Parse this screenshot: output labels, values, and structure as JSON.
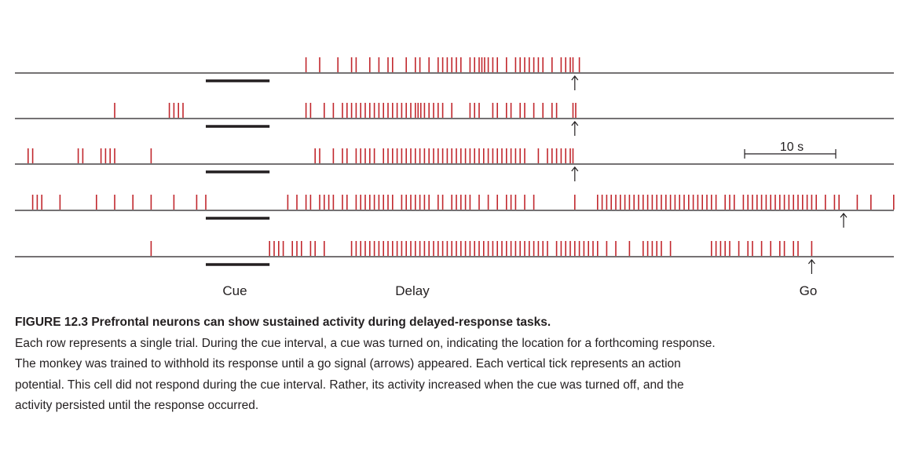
{
  "figure": {
    "label": "FIGURE 12.3",
    "title": "Prefrontal neurons can show sustained activity during delayed-response tasks.",
    "body": "Each row represents a single trial. During the cue interval, a cue was turned on, indicating the location for a forthcoming response. The monkey was trained to withhold its response until a go signal (arrows) appeared. Each vertical tick represents an action potential. This cell did not respond during the cue interval. Rather, its activity increased when the cue was turned off, and the activity persisted until the response occurred."
  },
  "labels": {
    "cue": "Cue",
    "delay": "Delay",
    "go": "Go",
    "scale": "10 s"
  },
  "colors": {
    "spike": "#c1272d",
    "axis": "#231f20"
  },
  "chart_data": {
    "type": "raster",
    "units": "s",
    "scale_bar_s": 10,
    "cue_interval_s": [
      0,
      7
    ],
    "trials": [
      {
        "go_s": 40.5,
        "spikes_s": [
          11.0,
          12.5,
          14.5,
          16.0,
          16.5,
          18.0,
          19.0,
          20.0,
          20.5,
          22.0,
          23.0,
          23.5,
          24.5,
          25.5,
          26.0,
          26.5,
          27.0,
          27.5,
          28.0,
          29.0,
          29.5,
          30.0,
          30.3,
          30.6,
          31.0,
          31.5,
          32.0,
          33.0,
          34.0,
          34.5,
          35.0,
          35.5,
          36.0,
          36.5,
          37.0,
          38.0,
          39.0,
          39.5,
          40.0,
          40.3,
          41.0
        ]
      },
      {
        "go_s": 40.5,
        "spikes_s": [
          -10.0,
          -4.0,
          -3.5,
          -3.0,
          -2.5,
          11.0,
          11.5,
          13.0,
          14.0,
          15.0,
          15.5,
          16.0,
          16.5,
          17.0,
          17.5,
          18.0,
          18.5,
          19.0,
          19.5,
          20.0,
          20.5,
          21.0,
          21.5,
          22.0,
          22.5,
          23.0,
          23.3,
          23.6,
          24.0,
          24.5,
          25.0,
          25.5,
          26.0,
          27.0,
          29.0,
          29.5,
          30.0,
          31.5,
          32.0,
          33.0,
          33.5,
          34.5,
          35.0,
          36.0,
          37.0,
          38.0,
          38.5,
          40.3,
          40.6
        ]
      },
      {
        "go_s": 40.5,
        "spikes_s": [
          -19.5,
          -19.0,
          -14.0,
          -13.5,
          -11.5,
          -11.0,
          -10.5,
          -10.0,
          -6.0,
          12.0,
          12.5,
          14.0,
          15.0,
          15.5,
          16.5,
          17.0,
          17.5,
          18.0,
          18.5,
          19.5,
          20.0,
          20.5,
          21.0,
          21.5,
          22.0,
          22.5,
          23.0,
          23.5,
          24.0,
          24.5,
          25.0,
          25.5,
          26.0,
          26.5,
          27.0,
          27.5,
          28.0,
          28.5,
          29.0,
          29.5,
          30.0,
          30.5,
          31.0,
          31.5,
          32.0,
          32.5,
          33.0,
          33.5,
          34.0,
          34.5,
          35.0,
          36.5,
          37.5,
          38.0,
          38.5,
          39.0,
          39.5,
          40.0,
          40.3
        ]
      },
      {
        "go_s": 70.0,
        "spikes_s": [
          -19.0,
          -18.5,
          -18.0,
          -16.0,
          -12.0,
          -10.0,
          -8.0,
          -6.0,
          -3.5,
          -1.0,
          0.0,
          9.0,
          10.0,
          11.0,
          11.5,
          12.5,
          13.0,
          13.5,
          14.0,
          15.0,
          15.5,
          16.5,
          17.0,
          17.5,
          18.0,
          18.5,
          19.0,
          19.5,
          20.0,
          20.5,
          21.5,
          22.0,
          22.5,
          23.0,
          23.5,
          24.0,
          24.5,
          25.5,
          26.0,
          27.0,
          27.5,
          28.0,
          28.5,
          29.0,
          30.0,
          31.0,
          32.0,
          33.0,
          33.5,
          34.0,
          35.0,
          36.0,
          40.5,
          43.0,
          43.5,
          44.0,
          44.5,
          45.0,
          45.5,
          46.0,
          46.5,
          47.0,
          47.5,
          48.0,
          48.5,
          49.0,
          49.5,
          50.0,
          50.5,
          51.0,
          51.5,
          52.0,
          52.5,
          53.0,
          53.5,
          54.0,
          54.5,
          55.0,
          55.5,
          56.0,
          57.0,
          57.5,
          58.0,
          59.0,
          59.5,
          60.0,
          60.5,
          61.0,
          61.5,
          62.0,
          62.5,
          63.0,
          63.5,
          64.0,
          64.5,
          65.0,
          65.5,
          66.0,
          66.5,
          67.0,
          68.0,
          69.0,
          69.5,
          71.5,
          73.0,
          75.5
        ]
      },
      {
        "go_s": 66.5,
        "spikes_s": [
          -6.0,
          7.0,
          7.5,
          8.0,
          8.5,
          9.5,
          10.0,
          10.5,
          11.5,
          12.0,
          13.0,
          16.0,
          16.5,
          17.0,
          17.5,
          18.0,
          18.5,
          19.0,
          19.5,
          20.0,
          20.5,
          21.0,
          21.5,
          22.0,
          22.5,
          23.0,
          23.5,
          24.0,
          24.5,
          25.0,
          25.5,
          26.0,
          26.5,
          27.0,
          27.5,
          28.0,
          28.5,
          29.0,
          29.5,
          30.0,
          30.5,
          31.0,
          31.5,
          32.0,
          32.5,
          33.0,
          33.5,
          34.0,
          34.5,
          35.0,
          35.5,
          36.0,
          36.5,
          37.0,
          37.5,
          38.5,
          39.0,
          39.5,
          40.0,
          40.5,
          41.0,
          41.5,
          42.0,
          42.5,
          43.0,
          44.0,
          45.0,
          46.5,
          48.0,
          48.5,
          49.0,
          49.5,
          50.0,
          51.0,
          55.5,
          56.0,
          56.5,
          57.0,
          57.5,
          58.5,
          59.5,
          60.0,
          61.0,
          62.0,
          63.0,
          63.5,
          64.5,
          65.0,
          66.5
        ]
      }
    ]
  }
}
